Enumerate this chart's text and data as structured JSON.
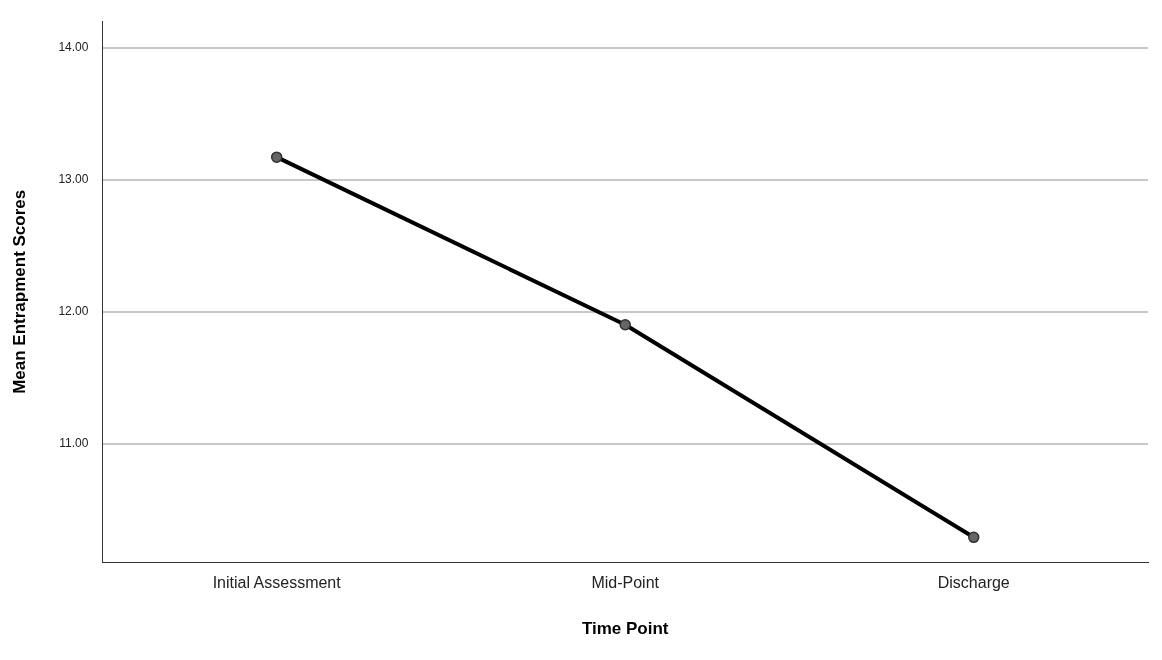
{
  "chart_data": {
    "type": "line",
    "xlabel": "Time Point",
    "ylabel": "Mean Entrapment Scores",
    "categories": [
      "Initial Assessment",
      "Mid-Point",
      "Discharge"
    ],
    "series": [
      {
        "color": "#000000",
        "values": [
          13.17,
          11.9,
          10.29
        ]
      }
    ],
    "ylim": [
      10.1,
      14.2
    ],
    "yticks": [
      {
        "value": 11,
        "label": "11.00"
      },
      {
        "value": 12,
        "label": "12.00"
      },
      {
        "value": 13,
        "label": "13.00"
      },
      {
        "value": 14,
        "label": "14.00"
      }
    ],
    "grid": "y",
    "marker": "circle",
    "line_style": "solid",
    "legend": false
  }
}
